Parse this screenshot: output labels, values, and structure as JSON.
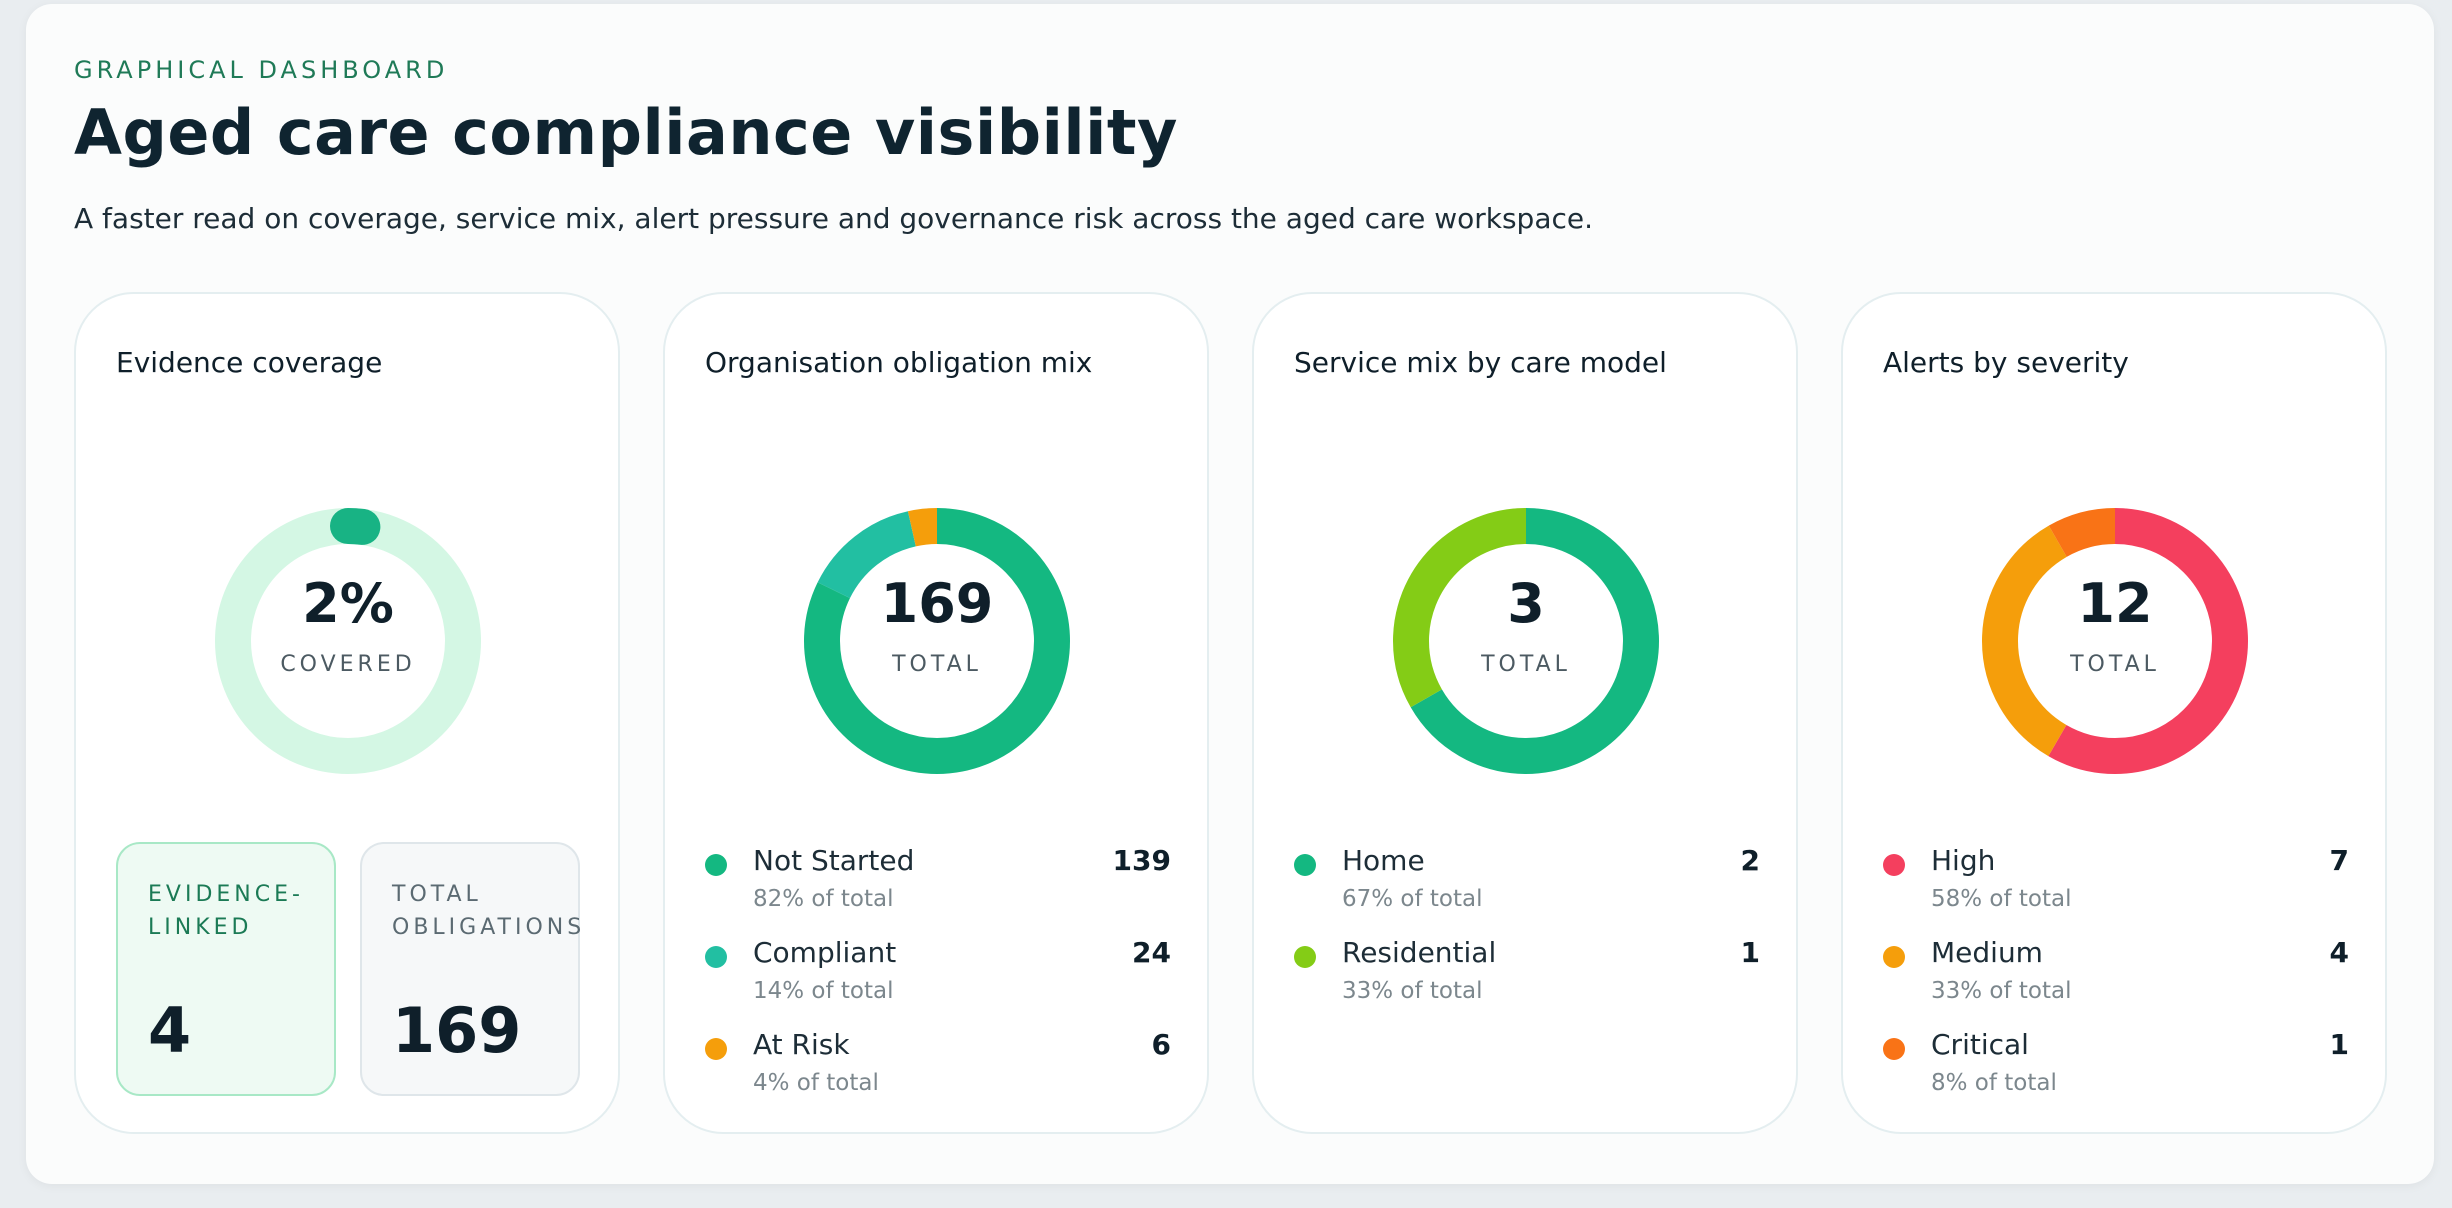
{
  "header": {
    "eyebrow": "GRAPHICAL DASHBOARD",
    "title": "Aged care compliance visibility",
    "subtitle": "A faster read on coverage, service mix, alert pressure and governance risk across the aged care workspace."
  },
  "coverage": {
    "title": "Evidence coverage",
    "value_text": "2%",
    "value_label": "COVERED",
    "fraction": 0.02,
    "track_color": "#d4f7e4",
    "fill_color": "#18b384",
    "stats": [
      {
        "label": "EVIDENCE-\nLINKED",
        "value": "4"
      },
      {
        "label": "TOTAL\nOBLIGATIONS",
        "value": "169"
      }
    ]
  },
  "obligations": {
    "title": "Organisation obligation mix",
    "total": "169",
    "total_label": "TOTAL",
    "items": [
      {
        "label": "Not Started",
        "pct": "82% of total",
        "count": "139",
        "value": 139,
        "color": "#14b881"
      },
      {
        "label": "Compliant",
        "pct": "14% of total",
        "count": "24",
        "value": 24,
        "color": "#22bfa2"
      },
      {
        "label": "At Risk",
        "pct": "4% of total",
        "count": "6",
        "value": 6,
        "color": "#f59e0b"
      }
    ]
  },
  "services": {
    "title": "Service mix by care model",
    "total": "3",
    "total_label": "TOTAL",
    "items": [
      {
        "label": "Home",
        "pct": "67% of total",
        "count": "2",
        "value": 2,
        "color": "#14b881"
      },
      {
        "label": "Residential",
        "pct": "33% of total",
        "count": "1",
        "value": 1,
        "color": "#84cc16"
      }
    ]
  },
  "alerts": {
    "title": "Alerts by severity",
    "total": "12",
    "total_label": "TOTAL",
    "items": [
      {
        "label": "High",
        "pct": "58% of total",
        "count": "7",
        "value": 7,
        "color": "#f43f5e"
      },
      {
        "label": "Medium",
        "pct": "33% of total",
        "count": "4",
        "value": 4,
        "color": "#f59e0b"
      },
      {
        "label": "Critical",
        "pct": "8% of total",
        "count": "1",
        "value": 1,
        "color": "#f97316"
      }
    ]
  }
}
